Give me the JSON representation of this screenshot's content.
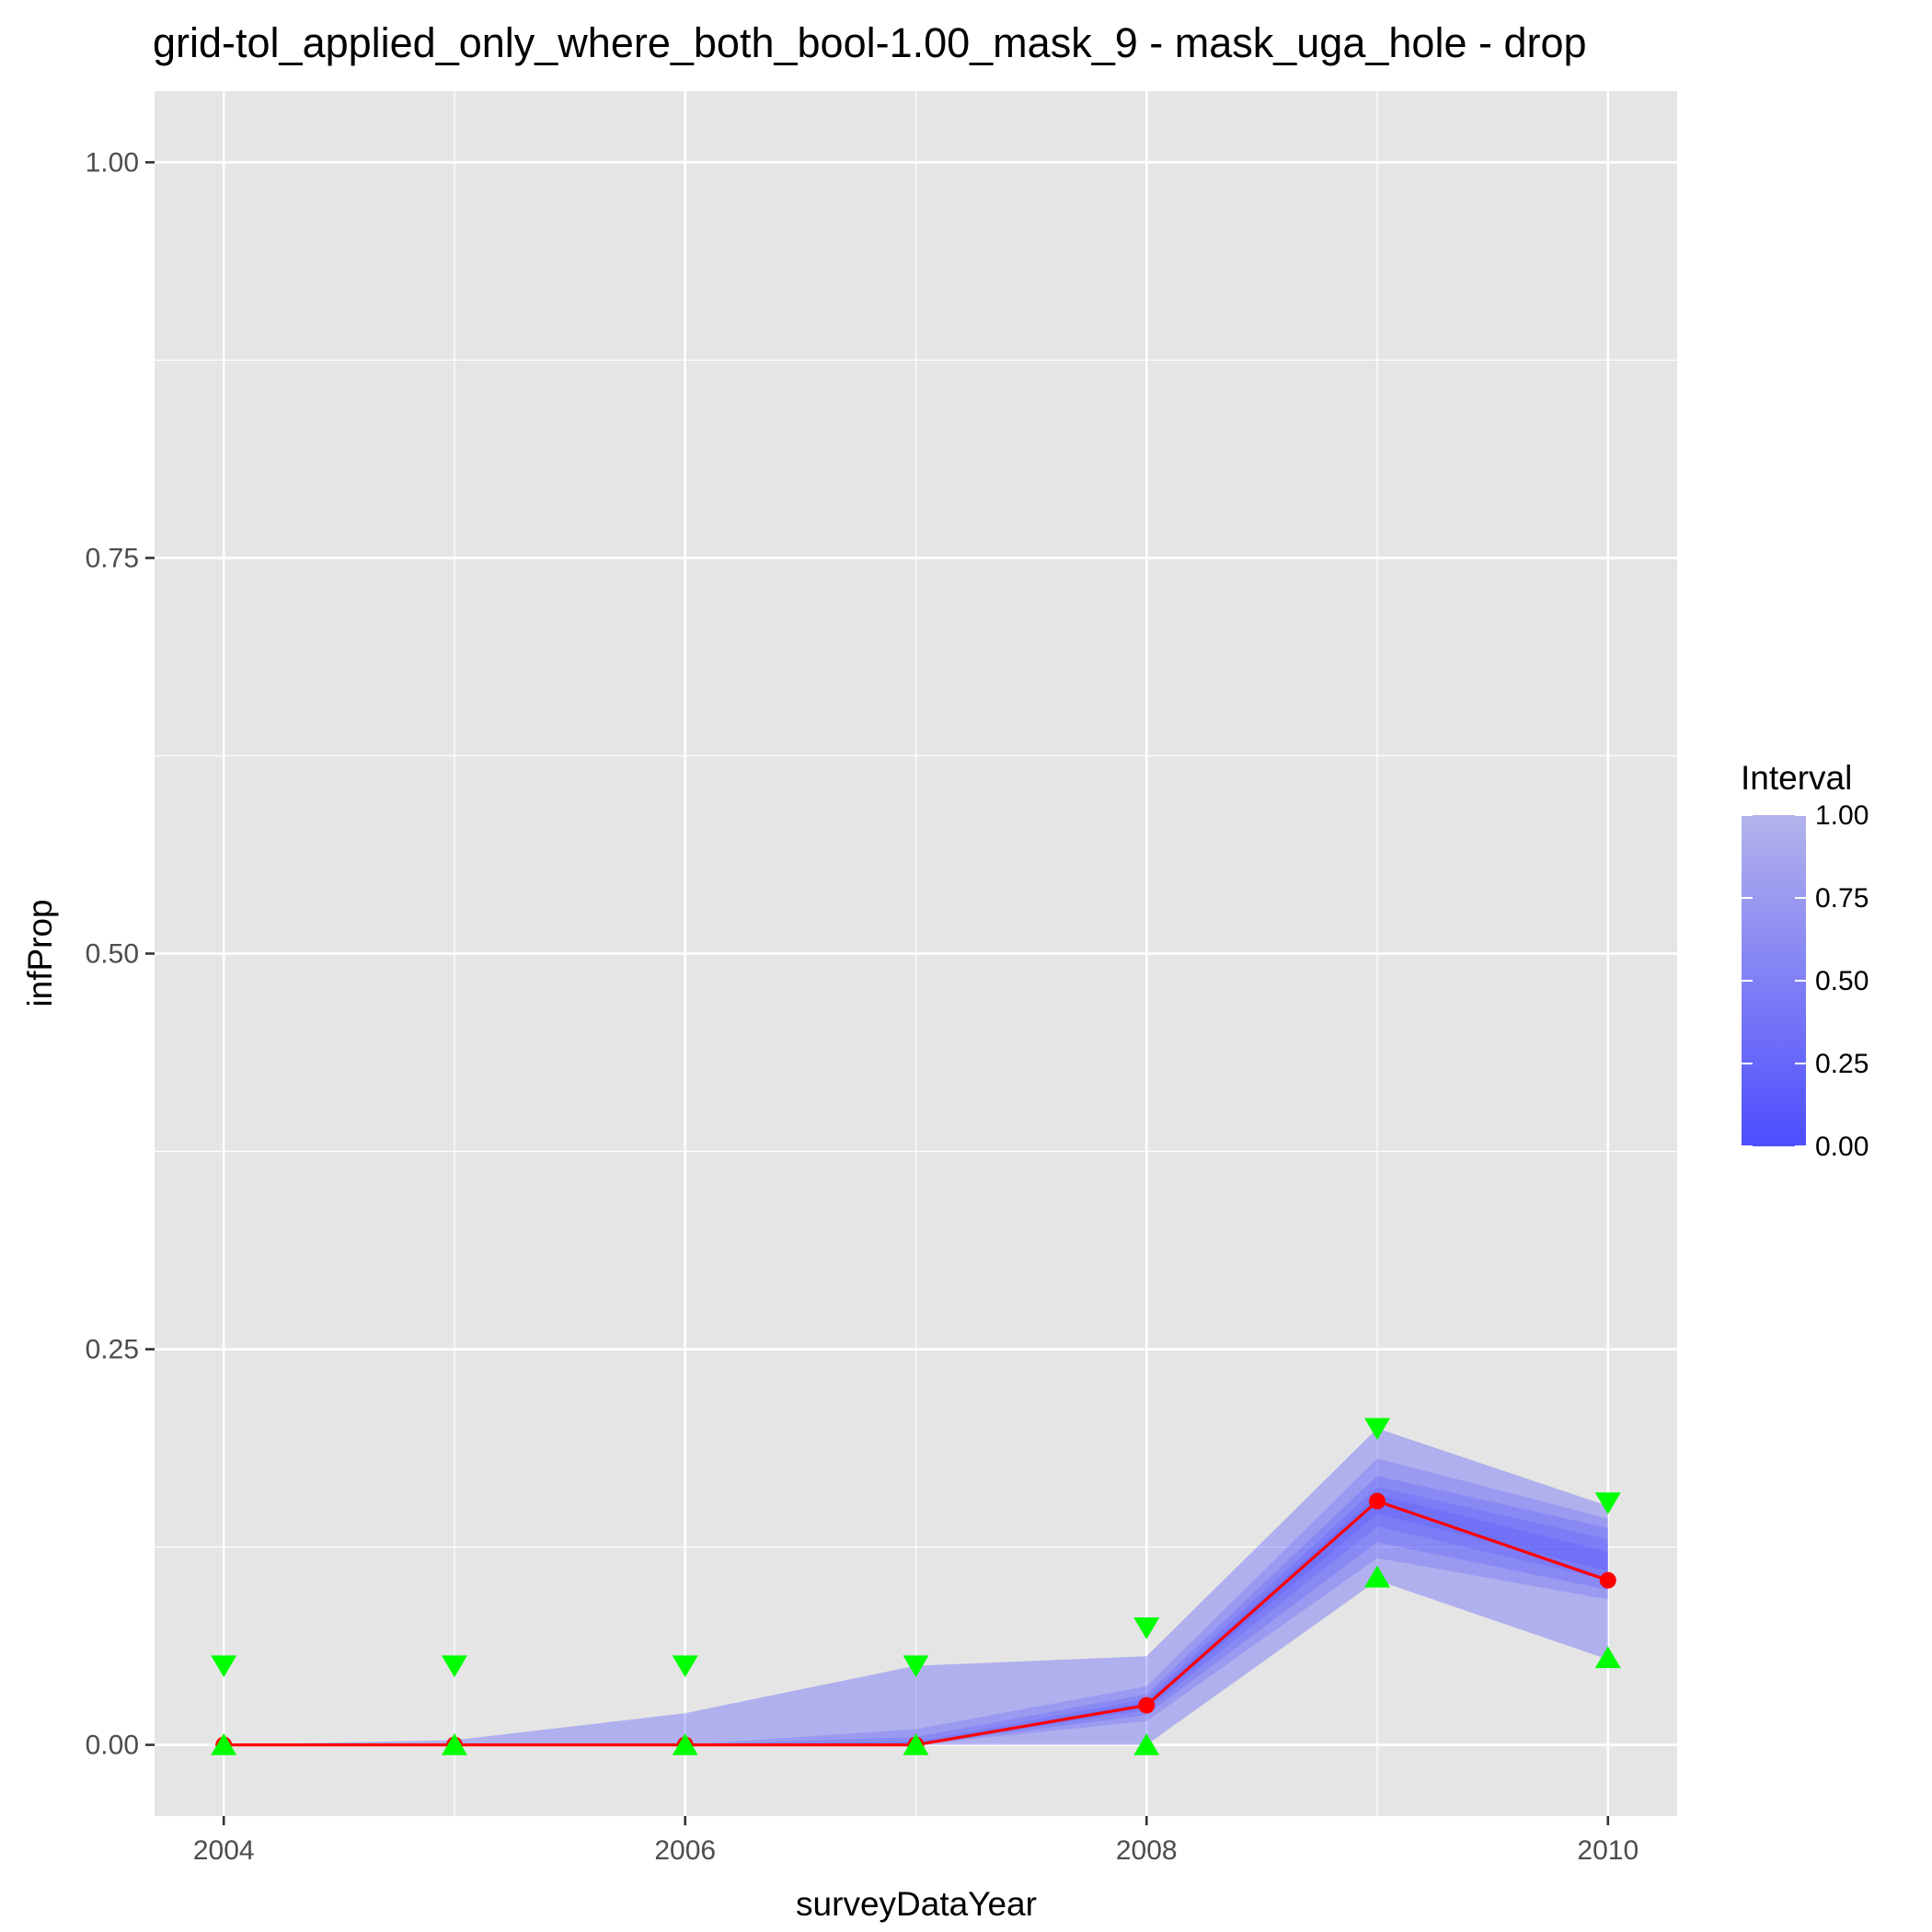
{
  "chart_data": {
    "type": "line",
    "title": "grid-tol_applied_only_where_both_bool-1.00_mask_9 - mask_uga_hole - drop",
    "xlabel": "surveyDataYear",
    "ylabel": "infProp",
    "x": [
      2004,
      2005,
      2006,
      2007,
      2008,
      2009,
      2010
    ],
    "xlim": [
      2003.7,
      2010.3
    ],
    "ylim": [
      -0.045,
      1.045
    ],
    "x_ticks": [
      2004,
      2006,
      2008,
      2010
    ],
    "x_tick_labels": [
      "2004",
      "2006",
      "2008",
      "2010"
    ],
    "y_ticks": [
      0,
      0.25,
      0.5,
      0.75,
      1
    ],
    "y_tick_labels": [
      "0.00",
      "0.25",
      "0.50",
      "0.75",
      "1.00"
    ],
    "grid": true,
    "median_line": {
      "color": "#ff0000",
      "values": [
        0.0,
        0.0,
        0.0,
        0.0,
        0.025,
        0.154,
        0.104
      ]
    },
    "upper_markers": {
      "color": "#00ff00",
      "shape": "triangle-down",
      "values": [
        0.05,
        0.05,
        0.05,
        0.05,
        0.074,
        0.2,
        0.153
      ]
    },
    "lower_markers": {
      "color": "#00ff00",
      "shape": "triangle-up",
      "values": [
        0.0,
        0.0,
        0.0,
        0.0,
        0.0,
        0.106,
        0.055
      ]
    },
    "interval_bands": [
      {
        "interval": 1.0,
        "lower": [
          0,
          0,
          0,
          0,
          0.0,
          0.104,
          0.054
        ],
        "upper": [
          0.0,
          0.003,
          0.02,
          0.05,
          0.056,
          0.2,
          0.151
        ]
      },
      {
        "interval": 0.8,
        "lower": [
          0,
          0,
          0,
          0,
          0.015,
          0.118,
          0.092
        ],
        "upper": [
          0.0,
          0.0,
          0.0,
          0.01,
          0.037,
          0.181,
          0.143
        ]
      },
      {
        "interval": 0.6,
        "lower": [
          0,
          0,
          0,
          0,
          0.019,
          0.128,
          0.098
        ],
        "upper": [
          0.0,
          0.0,
          0.0,
          0.005,
          0.032,
          0.17,
          0.137
        ]
      },
      {
        "interval": 0.4,
        "lower": [
          0,
          0,
          0,
          0,
          0.022,
          0.138,
          0.104
        ],
        "upper": [
          0.0,
          0.0,
          0.0,
          0.002,
          0.029,
          0.163,
          0.13
        ]
      },
      {
        "interval": 0.2,
        "lower": [
          0,
          0,
          0,
          0,
          0.024,
          0.146,
          0.11
        ],
        "upper": [
          0.0,
          0.0,
          0.0,
          0.0,
          0.027,
          0.158,
          0.122
        ]
      }
    ],
    "legend": {
      "title": "Interval",
      "placement": "right",
      "breaks": [
        "0.00",
        "0.25",
        "0.50",
        "0.75",
        "1.00"
      ],
      "color_low": "#4d4dff",
      "color_high": "#b3b3eb"
    },
    "colors": {
      "panel_background": "#e5e5e5",
      "grid_major": "#ffffff",
      "band_fill": "#4d4dff"
    }
  }
}
